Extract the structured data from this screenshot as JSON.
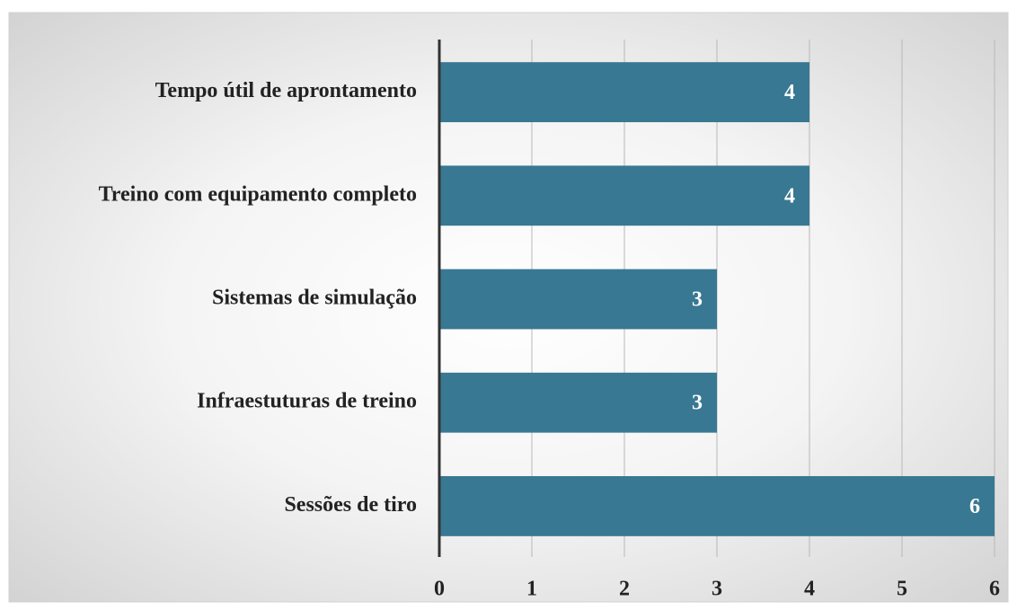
{
  "chart_data": {
    "type": "bar",
    "orientation": "horizontal",
    "categories": [
      "Tempo útil de aprontamento",
      "Treino com equipamento completo",
      "Sistemas de simulação",
      "Infraestuturas de treino",
      "Sessões de tiro"
    ],
    "values": [
      4,
      4,
      3,
      3,
      6
    ],
    "color": "#387892",
    "xlim": [
      0,
      6
    ],
    "xticks": [
      0,
      1,
      2,
      3,
      4,
      5,
      6
    ],
    "grid": true
  }
}
